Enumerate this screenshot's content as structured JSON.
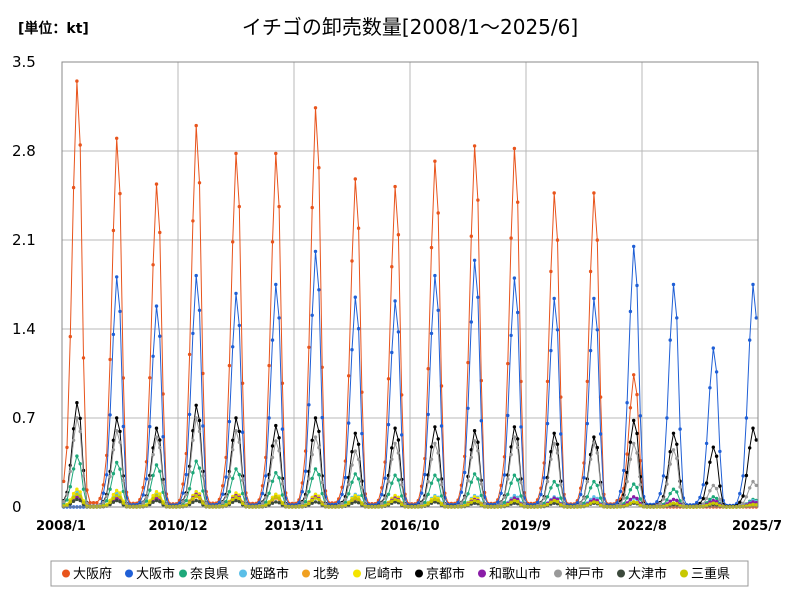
{
  "chart_data": {
    "type": "line",
    "title": "イチゴの卸売数量[2008/1～2025/6]",
    "unit_label": "[単位：kt]",
    "ylim": [
      0,
      3.5
    ],
    "yticks": [
      "0",
      "0.7",
      "1.4",
      "2.1",
      "2.8",
      "3.5"
    ],
    "xticks": [
      "2008/1",
      "2010/12",
      "2013/11",
      "2016/10",
      "2019/9",
      "2022/8",
      "2025/7"
    ],
    "x_start": "2008/1",
    "x_end": "2025/7",
    "grid": true,
    "legend_position": "bottom",
    "series": [
      {
        "name": "大阪府",
        "color": "#e8541c",
        "peaks": [
          [
            2008,
            3.35
          ],
          [
            2009,
            2.9
          ],
          [
            2010,
            2.54
          ],
          [
            2011,
            3.0
          ],
          [
            2012,
            2.78
          ],
          [
            2013,
            2.78
          ],
          [
            2014,
            3.14
          ],
          [
            2015,
            2.58
          ],
          [
            2016,
            2.52
          ],
          [
            2017,
            2.72
          ],
          [
            2018,
            2.84
          ],
          [
            2019,
            2.82
          ],
          [
            2020,
            2.47
          ],
          [
            2021,
            2.47
          ],
          [
            2022,
            1.04
          ]
        ]
      },
      {
        "name": "大阪市",
        "color": "#1f5fd6",
        "peaks": [
          [
            2009,
            1.81
          ],
          [
            2010,
            1.58
          ],
          [
            2011,
            1.82
          ],
          [
            2012,
            1.68
          ],
          [
            2013,
            1.75
          ],
          [
            2014,
            2.01
          ],
          [
            2015,
            1.65
          ],
          [
            2016,
            1.62
          ],
          [
            2017,
            1.82
          ],
          [
            2018,
            1.94
          ],
          [
            2019,
            1.8
          ],
          [
            2020,
            1.64
          ],
          [
            2021,
            1.64
          ],
          [
            2022,
            2.05
          ],
          [
            2023,
            1.75
          ],
          [
            2024,
            1.25
          ],
          [
            2025,
            1.75
          ]
        ]
      },
      {
        "name": "奈良県",
        "color": "#1ea87a",
        "peaks": [
          [
            2008,
            0.4
          ],
          [
            2009,
            0.35
          ],
          [
            2010,
            0.33
          ],
          [
            2011,
            0.36
          ],
          [
            2012,
            0.3
          ],
          [
            2013,
            0.27
          ],
          [
            2014,
            0.3
          ],
          [
            2015,
            0.26
          ],
          [
            2016,
            0.25
          ],
          [
            2017,
            0.25
          ],
          [
            2018,
            0.26
          ],
          [
            2019,
            0.25
          ],
          [
            2020,
            0.2
          ],
          [
            2021,
            0.2
          ],
          [
            2022,
            0.18
          ],
          [
            2023,
            0.14
          ],
          [
            2024,
            0.08
          ],
          [
            2025,
            0.06
          ]
        ]
      },
      {
        "name": "姫路市",
        "color": "#5bbfe8",
        "peaks": [
          [
            2008,
            0.12
          ],
          [
            2009,
            0.11
          ],
          [
            2010,
            0.11
          ],
          [
            2011,
            0.12
          ],
          [
            2012,
            0.1
          ],
          [
            2013,
            0.1
          ],
          [
            2014,
            0.1
          ],
          [
            2015,
            0.1
          ],
          [
            2016,
            0.09
          ],
          [
            2017,
            0.09
          ],
          [
            2018,
            0.09
          ],
          [
            2019,
            0.09
          ],
          [
            2020,
            0.08
          ],
          [
            2021,
            0.08
          ],
          [
            2022,
            0.07
          ],
          [
            2023,
            0.06
          ],
          [
            2024,
            0.05
          ],
          [
            2025,
            0.05
          ]
        ]
      },
      {
        "name": "北勢",
        "color": "#f0a020",
        "peaks": [
          [
            2008,
            0.09
          ],
          [
            2009,
            0.08
          ],
          [
            2010,
            0.08
          ],
          [
            2011,
            0.08
          ],
          [
            2012,
            0.07
          ],
          [
            2013,
            0.07
          ],
          [
            2014,
            0.07
          ],
          [
            2015,
            0.06
          ],
          [
            2016,
            0.06
          ],
          [
            2017,
            0.06
          ],
          [
            2018,
            0.05
          ],
          [
            2019,
            0.05
          ],
          [
            2020,
            0.05
          ],
          [
            2021,
            0.04
          ],
          [
            2022,
            0.04
          ],
          [
            2023,
            0.03
          ],
          [
            2024,
            0.03
          ],
          [
            2025,
            0.02
          ]
        ]
      },
      {
        "name": "尼崎市",
        "color": "#f4e400",
        "peaks": [
          [
            2008,
            0.14
          ],
          [
            2009,
            0.13
          ],
          [
            2010,
            0.12
          ],
          [
            2011,
            0.12
          ],
          [
            2012,
            0.11
          ],
          [
            2013,
            0.1
          ],
          [
            2014,
            0.1
          ],
          [
            2015,
            0.09
          ],
          [
            2016,
            0.09
          ],
          [
            2017,
            0.08
          ],
          [
            2018,
            0.08
          ],
          [
            2019,
            0.07
          ],
          [
            2020,
            0.06
          ],
          [
            2021,
            0.05
          ],
          [
            2022,
            0.04
          ],
          [
            2023,
            0.03
          ],
          [
            2024,
            0.03
          ],
          [
            2025,
            0.02
          ]
        ]
      },
      {
        "name": "京都市",
        "color": "#000000",
        "peaks": [
          [
            2008,
            0.82
          ],
          [
            2009,
            0.7
          ],
          [
            2010,
            0.62
          ],
          [
            2011,
            0.8
          ],
          [
            2012,
            0.7
          ],
          [
            2013,
            0.64
          ],
          [
            2014,
            0.7
          ],
          [
            2015,
            0.58
          ],
          [
            2016,
            0.62
          ],
          [
            2017,
            0.63
          ],
          [
            2018,
            0.6
          ],
          [
            2019,
            0.63
          ],
          [
            2020,
            0.58
          ],
          [
            2021,
            0.55
          ],
          [
            2022,
            0.68
          ],
          [
            2023,
            0.58
          ],
          [
            2024,
            0.47
          ],
          [
            2025,
            0.62
          ]
        ]
      },
      {
        "name": "和歌山市",
        "color": "#8a1ca8",
        "peaks": [
          [
            2008,
            0.08
          ],
          [
            2009,
            0.07
          ],
          [
            2010,
            0.07
          ],
          [
            2011,
            0.1
          ],
          [
            2012,
            0.09
          ],
          [
            2013,
            0.08
          ],
          [
            2014,
            0.08
          ],
          [
            2015,
            0.07
          ],
          [
            2016,
            0.07
          ],
          [
            2017,
            0.06
          ],
          [
            2018,
            0.06
          ],
          [
            2019,
            0.07
          ],
          [
            2020,
            0.07
          ],
          [
            2021,
            0.06
          ],
          [
            2022,
            0.08
          ],
          [
            2023,
            0.06
          ],
          [
            2024,
            0.05
          ],
          [
            2025,
            0.04
          ]
        ]
      },
      {
        "name": "神戸市",
        "color": "#999999",
        "peaks": [
          [
            2008,
            0.7
          ],
          [
            2009,
            0.6
          ],
          [
            2010,
            0.55
          ],
          [
            2011,
            0.7
          ],
          [
            2012,
            0.6
          ],
          [
            2013,
            0.52
          ],
          [
            2014,
            0.55
          ],
          [
            2015,
            0.44
          ],
          [
            2016,
            0.5
          ],
          [
            2017,
            0.5
          ],
          [
            2018,
            0.52
          ],
          [
            2019,
            0.55
          ],
          [
            2020,
            0.5
          ],
          [
            2021,
            0.5
          ],
          [
            2022,
            0.5
          ],
          [
            2023,
            0.45
          ],
          [
            2024,
            0.17
          ],
          [
            2025,
            0.2
          ]
        ]
      },
      {
        "name": "大津市",
        "color": "#3c4a3c",
        "peaks": [
          [
            2008,
            0.06
          ],
          [
            2009,
            0.05
          ],
          [
            2010,
            0.05
          ],
          [
            2011,
            0.05
          ],
          [
            2012,
            0.05
          ],
          [
            2013,
            0.04
          ],
          [
            2014,
            0.04
          ],
          [
            2015,
            0.04
          ],
          [
            2016,
            0.04
          ],
          [
            2017,
            0.04
          ],
          [
            2018,
            0.03
          ],
          [
            2019,
            0.03
          ],
          [
            2020,
            0.03
          ],
          [
            2021,
            0.03
          ],
          [
            2022,
            0.03
          ],
          [
            2023,
            0.02
          ],
          [
            2024,
            0.02
          ],
          [
            2025,
            0.02
          ]
        ]
      },
      {
        "name": "三重県",
        "color": "#c8c800",
        "peaks": [
          [
            2008,
            0.1
          ],
          [
            2009,
            0.09
          ],
          [
            2010,
            0.09
          ],
          [
            2011,
            0.09
          ],
          [
            2012,
            0.08
          ],
          [
            2013,
            0.08
          ],
          [
            2014,
            0.07
          ],
          [
            2015,
            0.07
          ],
          [
            2016,
            0.06
          ],
          [
            2017,
            0.06
          ],
          [
            2018,
            0.05
          ],
          [
            2019,
            0.05
          ],
          [
            2020,
            0.05
          ],
          [
            2021,
            0.04
          ],
          [
            2022,
            0.04
          ],
          [
            2023,
            0.03
          ],
          [
            2024,
            0.03
          ],
          [
            2025,
            0.02
          ]
        ]
      }
    ]
  }
}
